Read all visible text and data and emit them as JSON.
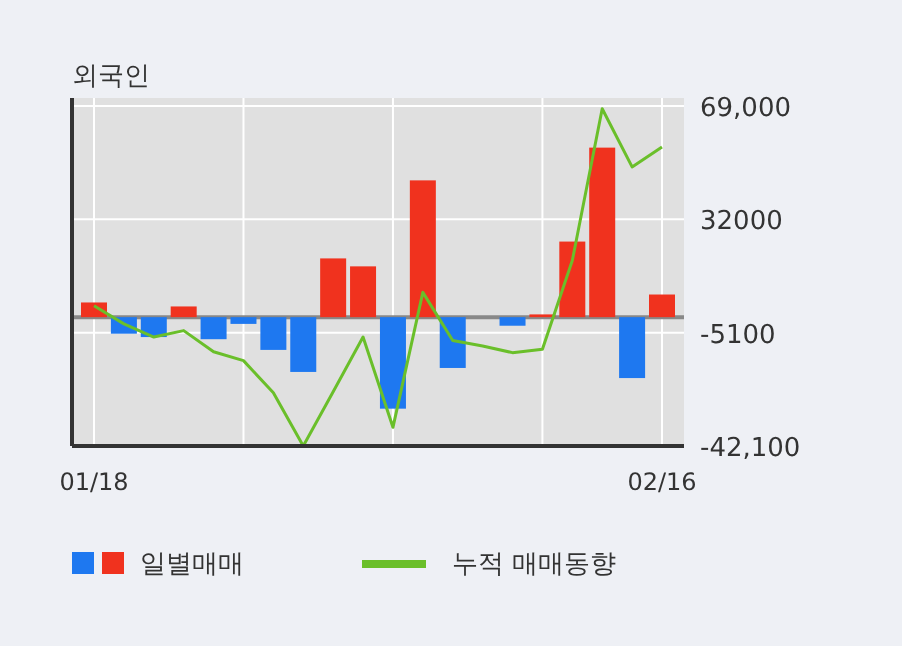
{
  "chart_data": {
    "type": "bar",
    "title": "외국인",
    "categories": [
      "01/18",
      null,
      null,
      null,
      null,
      null,
      null,
      null,
      null,
      null,
      null,
      null,
      null,
      null,
      null,
      null,
      null,
      null,
      null,
      "02/16"
    ],
    "series": [
      {
        "name": "일별매매",
        "colors": [
          "#f0321e",
          "#1e78f0",
          "#1e78f0",
          "#f0321e",
          "#1e78f0",
          "#1e78f0",
          "#1e78f0",
          "#1e78f0",
          "#f0321e",
          "#f0321e",
          "#1e78f0",
          "#f0321e",
          "#1e78f0",
          "#1e78f0",
          "#1e78f0",
          "#f0321e",
          "#f0321e",
          "#f0321e",
          "#1e78f0",
          "#f0321e"
        ],
        "values": [
          4800,
          -5400,
          -6500,
          3500,
          -7200,
          -2200,
          -10700,
          -17900,
          19200,
          16600,
          -29900,
          44700,
          -16600,
          0,
          -2800,
          900,
          24700,
          55400,
          -19900,
          7400
        ]
      },
      {
        "name": "누적 매매동향",
        "type": "line",
        "color": "#6abf2a",
        "values": [
          3700,
          -2200,
          -6500,
          -4400,
          -11300,
          -14200,
          -24700,
          -42100,
          -24400,
          -6500,
          -36000,
          8100,
          -7600,
          -9400,
          -11600,
          -10500,
          18500,
          68100,
          49100,
          55600
        ]
      }
    ],
    "ylim": [
      -42100,
      69000
    ],
    "yticks": [
      {
        "value": 69000,
        "label": "69,000"
      },
      32000,
      -5100,
      {
        "value": -42100,
        "label": "-42,100"
      }
    ],
    "grid": true,
    "legend": "bottom"
  }
}
